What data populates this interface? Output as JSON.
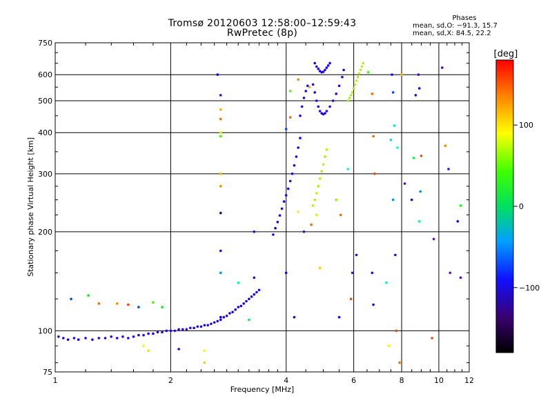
{
  "header": {
    "title": "Tromsø 20120603 12:58:00–12:59:43",
    "subtitle": "RwPretec (8p)"
  },
  "phases_box": {
    "title": "Phases",
    "line1": "mean, sd,O: −91.3, 15.7",
    "line2": "mean, sd,X: 84.5, 22.2"
  },
  "colorbar": {
    "label": "[deg]",
    "ticks": [
      {
        "value": 100,
        "label": "100"
      },
      {
        "value": 0,
        "label": "0"
      },
      {
        "value": -100,
        "label": "−100"
      }
    ],
    "min": -180,
    "max": 180
  },
  "chart_data": {
    "type": "scatter",
    "xlabel": "Frequency [MHz]",
    "ylabel": "Stationary phase Virtual Height [km]",
    "xscale": "log",
    "yscale": "log",
    "xlim": [
      1,
      12
    ],
    "ylim": [
      75,
      750
    ],
    "xticks": [
      {
        "value": 1,
        "label": "1"
      },
      {
        "value": 2,
        "label": "2"
      },
      {
        "value": 4,
        "label": "4"
      },
      {
        "value": 6,
        "label": "6"
      },
      {
        "value": 8,
        "label": "8"
      },
      {
        "value": 10,
        "label": "10"
      },
      {
        "value": 12,
        "label": "12"
      }
    ],
    "yticks": [
      {
        "value": 75,
        "label": "75"
      },
      {
        "value": 100,
        "label": "100"
      },
      {
        "value": 200,
        "label": "200"
      },
      {
        "value": 300,
        "label": "300"
      },
      {
        "value": 400,
        "label": "400"
      },
      {
        "value": 500,
        "label": "500"
      },
      {
        "value": 600,
        "label": "600"
      },
      {
        "value": 750,
        "label": "750"
      }
    ],
    "grid": true,
    "color_scale": "phase in degrees (rainbow, −180 black to +180 red)",
    "series": [
      {
        "mode": "O",
        "points": [
          [
            1.02,
            96,
            -115
          ],
          [
            1.05,
            95,
            -110
          ],
          [
            1.08,
            94,
            -108
          ],
          [
            1.12,
            95,
            -112
          ],
          [
            1.15,
            94,
            -105
          ],
          [
            1.2,
            95,
            -110
          ],
          [
            1.25,
            94,
            -115
          ],
          [
            1.3,
            95,
            -108
          ],
          [
            1.35,
            95,
            -112
          ],
          [
            1.4,
            96,
            -110
          ],
          [
            1.45,
            95,
            -105
          ],
          [
            1.5,
            96,
            -110
          ],
          [
            1.55,
            95,
            -112
          ],
          [
            1.6,
            96,
            -108
          ],
          [
            1.65,
            97,
            -110
          ],
          [
            1.7,
            97,
            -115
          ],
          [
            1.75,
            98,
            -110
          ],
          [
            1.8,
            98,
            -108
          ],
          [
            1.85,
            99,
            -112
          ],
          [
            1.9,
            99,
            -110
          ],
          [
            1.95,
            100,
            -105
          ],
          [
            2.0,
            100,
            -110
          ],
          [
            2.05,
            100,
            -112
          ],
          [
            2.1,
            101,
            -108
          ],
          [
            2.15,
            101,
            -110
          ],
          [
            2.2,
            101,
            -115
          ],
          [
            2.25,
            102,
            -110
          ],
          [
            2.3,
            102,
            -108
          ],
          [
            2.35,
            103,
            -112
          ],
          [
            2.4,
            103,
            -110
          ],
          [
            2.45,
            104,
            -108
          ],
          [
            2.5,
            104,
            -110
          ],
          [
            2.55,
            105,
            -112
          ],
          [
            2.6,
            106,
            -110
          ],
          [
            2.65,
            107,
            -108
          ],
          [
            2.7,
            108,
            -110
          ],
          [
            2.75,
            110,
            -112
          ],
          [
            2.8,
            111,
            -110
          ],
          [
            2.85,
            113,
            -108
          ],
          [
            2.9,
            114,
            -110
          ],
          [
            2.95,
            116,
            -112
          ],
          [
            3.0,
            118,
            -110
          ],
          [
            3.05,
            119,
            -108
          ],
          [
            3.1,
            121,
            -110
          ],
          [
            3.15,
            123,
            -112
          ],
          [
            3.2,
            125,
            -110
          ],
          [
            3.25,
            127,
            -108
          ],
          [
            3.3,
            129,
            -110
          ],
          [
            3.35,
            131,
            -112
          ],
          [
            3.4,
            133,
            -110
          ],
          [
            3.7,
            196,
            -110
          ],
          [
            3.75,
            205,
            -108
          ],
          [
            3.8,
            214,
            -110
          ],
          [
            3.85,
            224,
            -112
          ],
          [
            3.9,
            235,
            -110
          ],
          [
            3.95,
            247,
            -108
          ],
          [
            4.0,
            258,
            -110
          ],
          [
            4.05,
            270,
            -112
          ],
          [
            4.1,
            285,
            -110
          ],
          [
            4.15,
            300,
            -108
          ],
          [
            4.2,
            318,
            -110
          ],
          [
            4.25,
            338,
            -112
          ],
          [
            4.3,
            360,
            -110
          ],
          [
            4.35,
            385,
            -108
          ],
          [
            4.35,
            450,
            -110
          ],
          [
            4.4,
            480,
            -112
          ],
          [
            4.45,
            510,
            -110
          ],
          [
            4.5,
            535,
            -108
          ],
          [
            4.55,
            555,
            -110
          ],
          [
            4.7,
            560,
            -112
          ],
          [
            4.75,
            530,
            -110
          ],
          [
            4.8,
            500,
            -108
          ],
          [
            4.85,
            480,
            -110
          ],
          [
            4.9,
            465,
            -112
          ],
          [
            4.95,
            458,
            -110
          ],
          [
            5.0,
            455,
            -108
          ],
          [
            5.05,
            458,
            -110
          ],
          [
            5.1,
            465,
            -112
          ],
          [
            5.2,
            480,
            -110
          ],
          [
            5.3,
            500,
            -108
          ],
          [
            5.4,
            525,
            -110
          ],
          [
            5.5,
            555,
            -112
          ],
          [
            5.6,
            590,
            -110
          ],
          [
            5.65,
            620,
            -108
          ],
          [
            4.75,
            650,
            -110
          ],
          [
            4.8,
            635,
            -112
          ],
          [
            4.85,
            625,
            -110
          ],
          [
            4.9,
            615,
            -108
          ],
          [
            4.95,
            610,
            -110
          ],
          [
            5.0,
            612,
            -112
          ],
          [
            5.05,
            620,
            -110
          ],
          [
            5.1,
            630,
            -108
          ],
          [
            5.15,
            640,
            -110
          ],
          [
            5.2,
            650,
            -112
          ]
        ]
      },
      {
        "mode": "X",
        "points": [
          [
            4.7,
            240,
            90
          ],
          [
            4.75,
            250,
            88
          ],
          [
            4.8,
            262,
            92
          ],
          [
            4.85,
            275,
            85
          ],
          [
            4.9,
            290,
            90
          ],
          [
            4.95,
            305,
            88
          ],
          [
            5.0,
            320,
            92
          ],
          [
            5.05,
            338,
            86
          ],
          [
            5.1,
            355,
            90
          ],
          [
            5.8,
            500,
            80
          ],
          [
            5.85,
            510,
            85
          ],
          [
            5.9,
            520,
            90
          ],
          [
            5.95,
            530,
            88
          ],
          [
            6.0,
            545,
            86
          ],
          [
            6.05,
            560,
            92
          ],
          [
            6.1,
            575,
            90
          ],
          [
            6.15,
            590,
            85
          ],
          [
            6.2,
            605,
            88
          ],
          [
            6.25,
            620,
            90
          ],
          [
            6.3,
            635,
            92
          ],
          [
            6.35,
            650,
            88
          ]
        ]
      },
      {
        "mode": "noise",
        "points": [
          [
            1.1,
            125,
            -80
          ],
          [
            1.22,
            128,
            40
          ],
          [
            1.3,
            121,
            150
          ],
          [
            1.45,
            121,
            140
          ],
          [
            1.55,
            120,
            160
          ],
          [
            1.65,
            118,
            -80
          ],
          [
            1.8,
            122,
            60
          ],
          [
            1.9,
            118,
            30
          ],
          [
            1.7,
            90,
            110
          ],
          [
            1.75,
            87,
            115
          ],
          [
            2.1,
            88,
            -120
          ],
          [
            2.45,
            87,
            110
          ],
          [
            2.45,
            80,
            120
          ],
          [
            2.65,
            600,
            -100
          ],
          [
            2.7,
            520,
            -120
          ],
          [
            2.7,
            470,
            130
          ],
          [
            2.7,
            440,
            150
          ],
          [
            2.7,
            400,
            100
          ],
          [
            2.7,
            390,
            60
          ],
          [
            2.7,
            300,
            130
          ],
          [
            2.7,
            275,
            140
          ],
          [
            2.7,
            228,
            -140
          ],
          [
            2.7,
            175,
            -110
          ],
          [
            2.7,
            150,
            -60
          ],
          [
            2.7,
            110,
            -100
          ],
          [
            3.0,
            140,
            -20
          ],
          [
            3.2,
            108,
            20
          ],
          [
            3.3,
            200,
            -110
          ],
          [
            3.3,
            145,
            -110
          ],
          [
            4.0,
            410,
            -80
          ],
          [
            4.0,
            150,
            -100
          ],
          [
            4.1,
            535,
            60
          ],
          [
            4.1,
            445,
            150
          ],
          [
            4.2,
            110,
            -110
          ],
          [
            4.3,
            580,
            140
          ],
          [
            4.3,
            230,
            110
          ],
          [
            4.45,
            200,
            -110
          ],
          [
            4.6,
            550,
            130
          ],
          [
            4.65,
            210,
            150
          ],
          [
            4.8,
            225,
            100
          ],
          [
            4.9,
            155,
            120
          ],
          [
            5.4,
            250,
            80
          ],
          [
            5.55,
            225,
            150
          ],
          [
            5.5,
            110,
            -110
          ],
          [
            5.8,
            310,
            -20
          ],
          [
            5.9,
            125,
            160
          ],
          [
            5.95,
            150,
            -90
          ],
          [
            6.1,
            170,
            -110
          ],
          [
            6.55,
            610,
            60
          ],
          [
            6.7,
            525,
            150
          ],
          [
            6.75,
            390,
            150
          ],
          [
            6.8,
            300,
            160
          ],
          [
            6.7,
            150,
            -110
          ],
          [
            6.75,
            120,
            -110
          ],
          [
            7.3,
            140,
            -20
          ],
          [
            7.4,
            90,
            110
          ],
          [
            7.5,
            380,
            -40
          ],
          [
            7.55,
            600,
            -110
          ],
          [
            7.6,
            530,
            -80
          ],
          [
            7.65,
            420,
            -20
          ],
          [
            7.6,
            250,
            -60
          ],
          [
            7.7,
            170,
            -110
          ],
          [
            7.75,
            100,
            160
          ],
          [
            7.8,
            360,
            -30
          ],
          [
            7.9,
            80,
            150
          ],
          [
            8.0,
            600,
            130
          ],
          [
            8.15,
            280,
            -130
          ],
          [
            8.5,
            250,
            -110
          ],
          [
            8.6,
            335,
            20
          ],
          [
            8.7,
            520,
            -110
          ],
          [
            8.85,
            600,
            -120
          ],
          [
            8.9,
            545,
            -110
          ],
          [
            8.95,
            265,
            -60
          ],
          [
            8.9,
            215,
            -10
          ],
          [
            9.0,
            340,
            160
          ],
          [
            9.7,
            190,
            -130
          ],
          [
            9.6,
            95,
            160
          ],
          [
            10.2,
            630,
            -120
          ],
          [
            10.4,
            365,
            140
          ],
          [
            10.6,
            310,
            -120
          ],
          [
            10.7,
            150,
            -130
          ],
          [
            11.4,
            240,
            40
          ],
          [
            11.2,
            215,
            -100
          ],
          [
            11.4,
            145,
            -120
          ]
        ]
      }
    ]
  }
}
